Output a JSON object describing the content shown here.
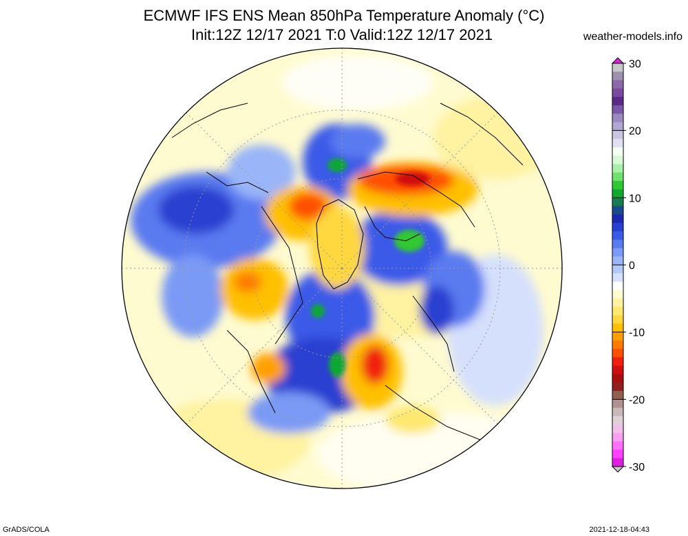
{
  "header": {
    "title_line1": "ECMWF IFS ENS Mean 850hPa Temperature Anomaly (°C)",
    "title_line2": "Init:12Z 12/17 2021  T:0 Valid:12Z 12/17 2021",
    "site": "weather-models.info"
  },
  "legend": {
    "ticks": [
      "30",
      "20",
      "10",
      "0",
      "-10",
      "-20",
      "-30"
    ],
    "colors": [
      "#c8c8c8",
      "#a090b0",
      "#8a6aa8",
      "#7a4aa0",
      "#5a2a88",
      "#7a5aa8",
      "#9a8ac0",
      "#b0a8d0",
      "#cac6e0",
      "#e0e0f0",
      "#f4fff4",
      "#d8f8d8",
      "#a8f0a8",
      "#70e070",
      "#30c830",
      "#10a830",
      "#1a7a50",
      "#1a4a8a",
      "#1a2ab0",
      "#2a40d0",
      "#3a5ae8",
      "#5a7af0",
      "#7a9af5",
      "#9ab5f8",
      "#b5c8fa",
      "#d5e0fc",
      "#ffffff",
      "#fffbd0",
      "#fff2a0",
      "#ffe870",
      "#ffd840",
      "#ffc000",
      "#ffa000",
      "#ff7a00",
      "#ff5000",
      "#f02010",
      "#d01010",
      "#a81010",
      "#902020",
      "#906050",
      "#b09090",
      "#c8b8b8",
      "#e0d0d8",
      "#f0c0e8",
      "#f8a0f0",
      "#ff70ff",
      "#ff40ff",
      "#e020e0"
    ]
  },
  "footer": {
    "left": "GrADS/COLA",
    "right": "2021-12-18-04:43"
  }
}
